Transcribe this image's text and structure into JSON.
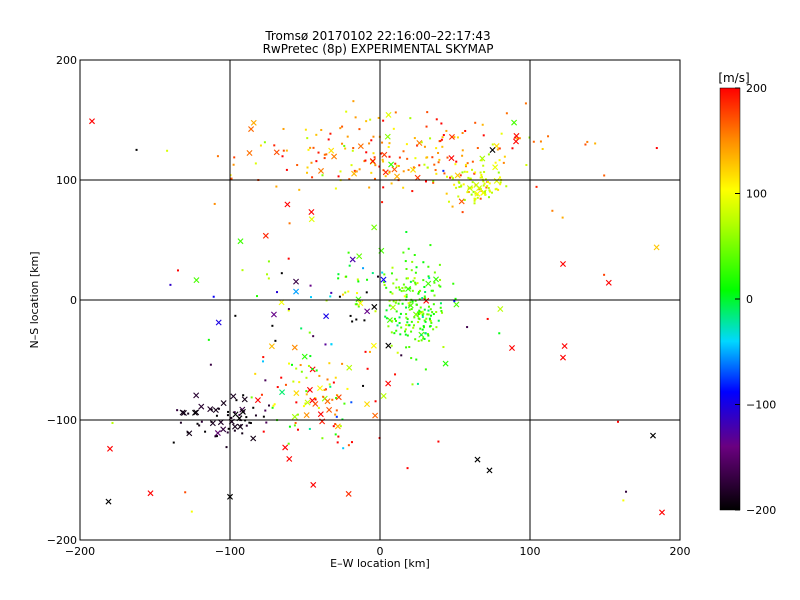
{
  "chart_data": {
    "type": "scatter",
    "title": "Tromsø 20170102 22:16:00–22:17:43",
    "subtitle": "RwPretec (8p) EXPERIMENTAL SKYMAP",
    "xlabel": "E–W location [km]",
    "ylabel": "N–S location [km]",
    "xlim": [
      -200,
      200
    ],
    "ylim": [
      -200,
      200
    ],
    "x_ticks": [
      -200,
      -100,
      0,
      100,
      200
    ],
    "y_ticks": [
      -200,
      -100,
      0,
      100,
      200
    ],
    "x_tick_labels": [
      "−200",
      "−100",
      "0",
      "100",
      "200"
    ],
    "y_tick_labels": [
      "−200",
      "−100",
      "0",
      "100",
      "200"
    ],
    "grid": true,
    "colorbar": {
      "label": "[m/s]",
      "range": [
        -200,
        200
      ],
      "ticks": [
        200,
        100,
        0,
        -100,
        -200
      ],
      "tick_labels": [
        "200",
        "100",
        "0",
        "−100",
        "−200"
      ],
      "colormap": "rainbow"
    },
    "clusters": [
      {
        "cx": 15,
        "cy": 120,
        "sx": 55,
        "sy": 18,
        "n": 230,
        "v_mean": 150,
        "v_sd": 45,
        "cross_frac": 0.12
      },
      {
        "cx": 65,
        "cy": 95,
        "sx": 9,
        "sy": 8,
        "n": 80,
        "v_mean": 85,
        "v_sd": 15,
        "cross_frac": 0.04
      },
      {
        "cx": 25,
        "cy": -10,
        "sx": 10,
        "sy": 18,
        "n": 170,
        "v_mean": 30,
        "v_sd": 25,
        "cross_frac": 0.03
      },
      {
        "cx": -10,
        "cy": 15,
        "sx": 28,
        "sy": 12,
        "n": 50,
        "v_mean": 40,
        "v_sd": 40,
        "cross_frac": 0.05
      },
      {
        "cx": -40,
        "cy": -85,
        "sx": 22,
        "sy": 20,
        "n": 100,
        "v_mean": 110,
        "v_sd": 90,
        "cross_frac": 0.25
      },
      {
        "cx": -105,
        "cy": -98,
        "sx": 18,
        "sy": 9,
        "n": 65,
        "v_mean": -190,
        "v_sd": 15,
        "cross_frac": 0.35
      },
      {
        "cx": -55,
        "cy": -10,
        "sx": 35,
        "sy": 22,
        "n": 40,
        "v_mean": -130,
        "v_sd": 80,
        "cross_frac": 0.3
      },
      {
        "cx": 0,
        "cy": 0,
        "sx": 110,
        "sy": 110,
        "n": 60,
        "v_mean": 120,
        "v_sd": 140,
        "cross_frac": 0.4
      }
    ],
    "notable_points": [
      {
        "x": -192,
        "y": 149,
        "v": 200,
        "marker": "x"
      },
      {
        "x": -180,
        "y": -124,
        "v": 200,
        "marker": "x"
      },
      {
        "x": -181,
        "y": -168,
        "v": -200,
        "marker": "x"
      },
      {
        "x": -153,
        "y": -161,
        "v": 200,
        "marker": "x"
      },
      {
        "x": -100,
        "y": -164,
        "v": -200,
        "marker": "x"
      },
      {
        "x": 122,
        "y": 30,
        "v": 200,
        "marker": "x"
      },
      {
        "x": 122,
        "y": -48,
        "v": 200,
        "marker": "x"
      },
      {
        "x": 182,
        "y": -113,
        "v": -200,
        "marker": "x"
      },
      {
        "x": 188,
        "y": -177,
        "v": 200,
        "marker": "x"
      },
      {
        "x": 75,
        "y": 125,
        "v": -200,
        "marker": "x"
      },
      {
        "x": 65,
        "y": -133,
        "v": -200,
        "marker": "x"
      },
      {
        "x": 73,
        "y": -142,
        "v": -200,
        "marker": "x"
      },
      {
        "x": -93,
        "y": 49,
        "v": 30,
        "marker": "x"
      },
      {
        "x": 88,
        "y": -40,
        "v": 200,
        "marker": "x"
      }
    ]
  }
}
